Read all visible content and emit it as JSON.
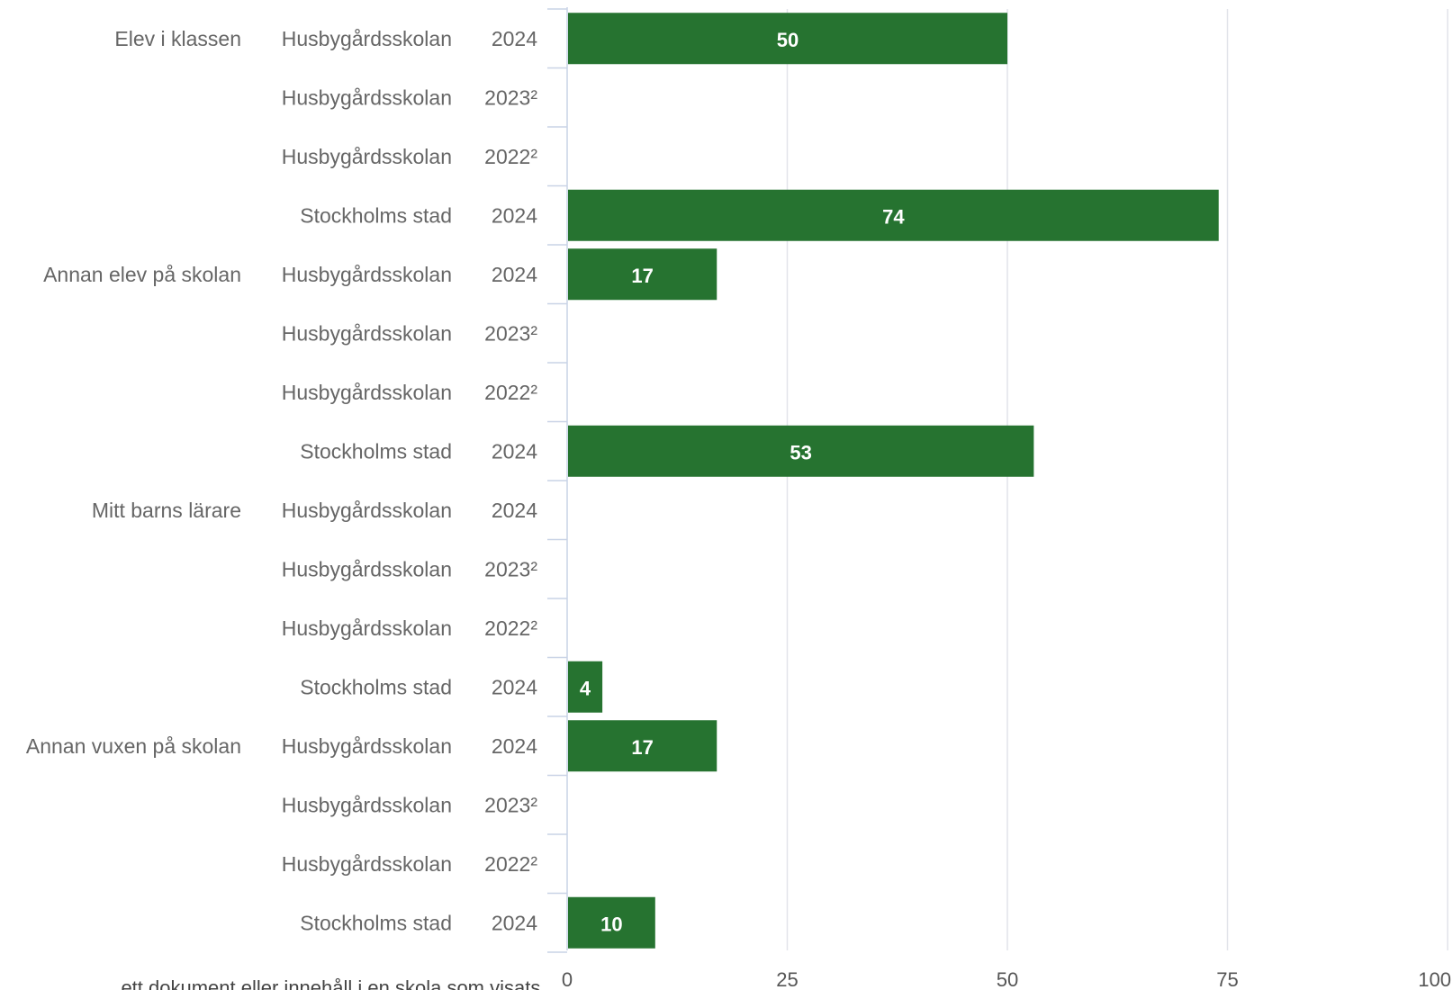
{
  "chart_data": {
    "type": "bar",
    "orientation": "horizontal",
    "title": "",
    "xlabel": "",
    "ylabel": "",
    "xlim": [
      0,
      100
    ],
    "x_ticks": [
      "0",
      "25",
      "50",
      "75",
      "100"
    ],
    "grid": true,
    "bar_color": "#267330",
    "groups": [
      {
        "name": "Elev i klassen",
        "rows": [
          {
            "unit": "Husbygårdsskolan",
            "year": "2024",
            "value": 50,
            "label": "50"
          },
          {
            "unit": "Husbygårdsskolan",
            "year": "2023²",
            "value": null,
            "label": ""
          },
          {
            "unit": "Husbygårdsskolan",
            "year": "2022²",
            "value": null,
            "label": ""
          },
          {
            "unit": "Stockholms stad",
            "year": "2024",
            "value": 74,
            "label": "74"
          }
        ]
      },
      {
        "name": "Annan elev på skolan",
        "rows": [
          {
            "unit": "Husbygårdsskolan",
            "year": "2024",
            "value": 17,
            "label": "17"
          },
          {
            "unit": "Husbygårdsskolan",
            "year": "2023²",
            "value": null,
            "label": ""
          },
          {
            "unit": "Husbygårdsskolan",
            "year": "2022²",
            "value": null,
            "label": ""
          },
          {
            "unit": "Stockholms stad",
            "year": "2024",
            "value": 53,
            "label": "53"
          }
        ]
      },
      {
        "name": "Mitt barns lärare",
        "rows": [
          {
            "unit": "Husbygårdsskolan",
            "year": "2024",
            "value": null,
            "label": ""
          },
          {
            "unit": "Husbygårdsskolan",
            "year": "2023²",
            "value": null,
            "label": ""
          },
          {
            "unit": "Husbygårdsskolan",
            "year": "2022²",
            "value": null,
            "label": ""
          },
          {
            "unit": "Stockholms stad",
            "year": "2024",
            "value": 4,
            "label": "4"
          }
        ]
      },
      {
        "name": "Annan vuxen på skolan",
        "rows": [
          {
            "unit": "Husbygårdsskolan",
            "year": "2024",
            "value": 17,
            "label": "17"
          },
          {
            "unit": "Husbygårdsskolan",
            "year": "2023²",
            "value": null,
            "label": ""
          },
          {
            "unit": "Husbygårdsskolan",
            "year": "2022²",
            "value": null,
            "label": ""
          },
          {
            "unit": "Stockholms stad",
            "year": "2024",
            "value": 10,
            "label": "10"
          }
        ]
      }
    ]
  },
  "colors": {
    "bar": "#267330",
    "grid": "#e2e4ea",
    "axis": "#c9d3e6",
    "label": "#666666"
  },
  "footnote": "... ett dokument eller innehåll i en skola som visats"
}
